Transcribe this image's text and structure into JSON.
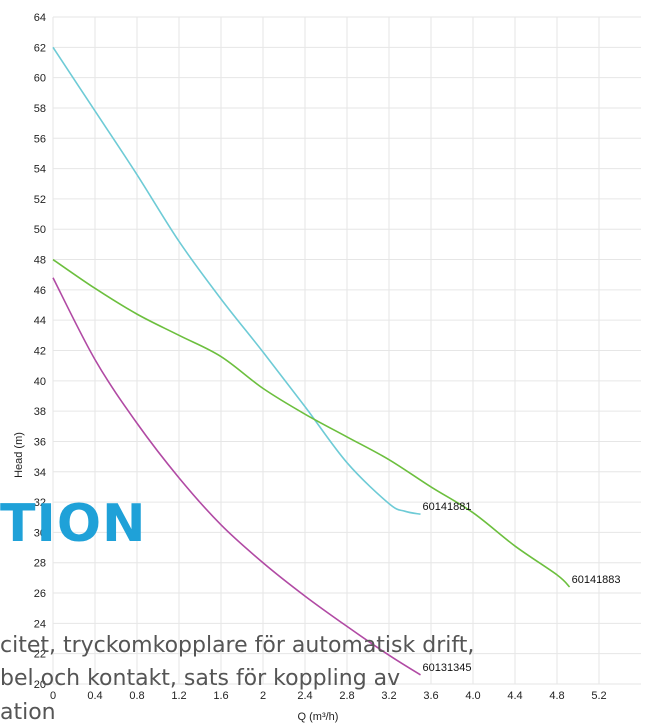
{
  "page_text": {
    "heading": "TION",
    "lines": [
      "citet, tryckomkopplare för automatisk drift,",
      "bel och kontakt, sats för koppling av",
      "ation"
    ]
  },
  "colors": {
    "series_cyan": "#6ecbd6",
    "series_green": "#6cbf3e",
    "series_magenta": "#b14aa4",
    "heading_blue": "#1fa1d8"
  },
  "chart_data": {
    "type": "line",
    "title": "",
    "xlabel": "Q (m³/h)",
    "ylabel": "Head (m)",
    "xlim": [
      0,
      5.6
    ],
    "ylim": [
      20,
      64
    ],
    "x_ticks": [
      "0",
      "0.4",
      "0.8",
      "1.2",
      "1.6",
      "2",
      "2.4",
      "2.8",
      "3.2",
      "3.6",
      "4.0",
      "4.4",
      "4.8",
      "5.2"
    ],
    "x_tick_values": [
      0,
      0.4,
      0.8,
      1.2,
      1.6,
      2.0,
      2.4,
      2.8,
      3.2,
      3.6,
      4.0,
      4.4,
      4.8,
      5.2
    ],
    "y_ticks": [
      20,
      22,
      24,
      26,
      28,
      30,
      32,
      34,
      36,
      38,
      40,
      42,
      44,
      46,
      48,
      50,
      52,
      54,
      56,
      58,
      60,
      62,
      64
    ],
    "grid": true,
    "legend": "none",
    "series": [
      {
        "name": "60141881",
        "color": "#6ecbd6",
        "x": [
          0,
          0.4,
          0.8,
          1.2,
          1.6,
          2.0,
          2.4,
          2.8,
          3.2,
          3.35,
          3.5
        ],
        "y": [
          62,
          57.8,
          53.6,
          49.2,
          45.4,
          41.9,
          38.3,
          34.6,
          31.9,
          31.4,
          31.2
        ]
      },
      {
        "name": "60141883",
        "color": "#6cbf3e",
        "x": [
          0,
          0.4,
          0.8,
          1.2,
          1.6,
          2.0,
          2.4,
          2.8,
          3.2,
          3.6,
          4.0,
          4.4,
          4.8,
          4.92
        ],
        "y": [
          48,
          46.1,
          44.4,
          43.0,
          41.6,
          39.5,
          37.8,
          36.3,
          34.8,
          33.0,
          31.3,
          29.1,
          27.2,
          26.4
        ]
      },
      {
        "name": "60131345",
        "color": "#b14aa4",
        "x": [
          0,
          0.4,
          0.8,
          1.2,
          1.6,
          2.0,
          2.4,
          2.8,
          3.2,
          3.5
        ],
        "y": [
          46.8,
          41.4,
          37.2,
          33.6,
          30.5,
          28.0,
          25.8,
          23.8,
          21.9,
          20.6
        ]
      }
    ]
  }
}
